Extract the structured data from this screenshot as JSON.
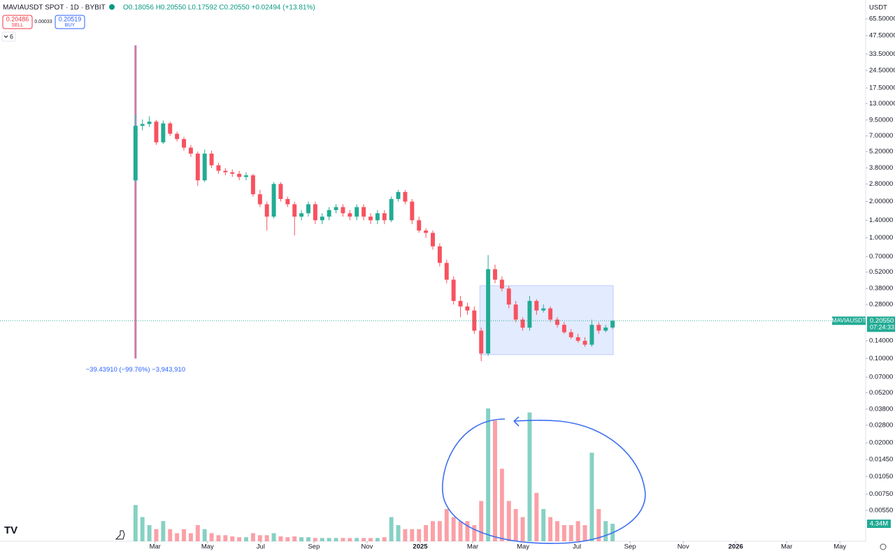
{
  "toolbar": {
    "symbol": "MAVIAUSDT SPOT · 1D · BYBIT",
    "ohlc": "O0.18056 H0.20550 L0.17592 C0.20550 +0.02494 (+13.81%)",
    "sell_price": "0.20486",
    "sell": "SELL",
    "spread": "0.00033",
    "buy_price": "0.20519",
    "buy": "BUY",
    "indicators": "6",
    "currency": "USDT"
  },
  "price_label": {
    "name": "MAVIAUSDT",
    "price": "0.20550",
    "countdown": "07:24:33"
  },
  "chart_data": {
    "type": "candlestick",
    "log_scale": true,
    "grid": false,
    "up_color": "#22ab94",
    "down_color": "#f7525f",
    "open": [
      3.0,
      8.5,
      8.8,
      9.2,
      6.2,
      8.9,
      7.3,
      6.6,
      5.6,
      5.0,
      3.0,
      5.0,
      4.0,
      3.6,
      3.5,
      3.4,
      3.2,
      3.3,
      2.3,
      1.9,
      1.5,
      2.8,
      2.1,
      1.9,
      1.5,
      1.6,
      1.9,
      1.4,
      1.5,
      1.7,
      1.8,
      1.6,
      1.5,
      1.8,
      1.5,
      1.4,
      1.6,
      1.4,
      2.1,
      2.4,
      2.0,
      1.4,
      1.15,
      1.1,
      0.85,
      0.62,
      0.45,
      0.3,
      0.27,
      0.25,
      0.17,
      0.11,
      0.55,
      0.45,
      0.38,
      0.28,
      0.21,
      0.18,
      0.3,
      0.25,
      0.26,
      0.21,
      0.19,
      0.165,
      0.15,
      0.14,
      0.13,
      0.19,
      0.17,
      0.18056
    ],
    "high": [
      10.5,
      9.6,
      10.2,
      9.5,
      9.4,
      9.2,
      7.6,
      6.9,
      5.9,
      5.2,
      5.4,
      5.3,
      4.2,
      3.8,
      3.7,
      3.6,
      3.5,
      3.4,
      2.5,
      2.0,
      2.9,
      2.9,
      2.2,
      2.0,
      1.7,
      2.0,
      2.0,
      1.6,
      1.8,
      1.9,
      1.9,
      1.7,
      1.9,
      1.9,
      1.6,
      1.7,
      1.7,
      2.2,
      2.5,
      2.5,
      2.1,
      1.5,
      1.2,
      1.15,
      0.9,
      0.66,
      0.48,
      0.33,
      0.29,
      0.27,
      0.18,
      0.72,
      0.6,
      0.48,
      0.4,
      0.3,
      0.22,
      0.33,
      0.31,
      0.28,
      0.27,
      0.22,
      0.2,
      0.175,
      0.16,
      0.15,
      0.21,
      0.2,
      0.19,
      0.2055
    ],
    "low": [
      2.9,
      7.8,
      8.3,
      5.9,
      6.0,
      7.0,
      6.3,
      5.3,
      4.7,
      2.7,
      2.9,
      3.8,
      3.4,
      3.3,
      3.2,
      3.0,
      3.0,
      2.2,
      1.8,
      1.15,
      1.45,
      2.0,
      1.8,
      1.05,
      1.4,
      1.5,
      1.3,
      1.3,
      1.4,
      1.6,
      1.5,
      1.4,
      1.4,
      1.4,
      1.3,
      1.3,
      1.3,
      1.35,
      2.0,
      1.9,
      1.3,
      1.1,
      1.0,
      0.8,
      0.58,
      0.42,
      0.28,
      0.22,
      0.23,
      0.16,
      0.095,
      0.105,
      0.42,
      0.36,
      0.26,
      0.2,
      0.17,
      0.17,
      0.23,
      0.24,
      0.2,
      0.18,
      0.16,
      0.145,
      0.135,
      0.125,
      0.125,
      0.16,
      0.165,
      0.17592
    ],
    "close": [
      8.5,
      8.8,
      9.2,
      6.2,
      8.9,
      7.3,
      6.6,
      5.6,
      5.0,
      3.0,
      5.0,
      4.0,
      3.6,
      3.5,
      3.4,
      3.2,
      3.3,
      2.3,
      1.9,
      1.5,
      2.8,
      2.1,
      1.9,
      1.5,
      1.6,
      1.9,
      1.4,
      1.5,
      1.7,
      1.8,
      1.6,
      1.5,
      1.8,
      1.5,
      1.4,
      1.6,
      1.4,
      2.1,
      2.4,
      2.0,
      1.4,
      1.15,
      1.1,
      0.85,
      0.62,
      0.45,
      0.3,
      0.27,
      0.25,
      0.17,
      0.11,
      0.55,
      0.45,
      0.38,
      0.28,
      0.21,
      0.18,
      0.3,
      0.25,
      0.26,
      0.21,
      0.19,
      0.165,
      0.15,
      0.14,
      0.13,
      0.19,
      0.17,
      0.18056,
      0.2055
    ],
    "series": [
      {
        "name": "Volume",
        "axis": "y2",
        "values": [
          9,
          6,
          4,
          3,
          5,
          3,
          2,
          3,
          2,
          4,
          3,
          2,
          1.5,
          1.5,
          1.2,
          1,
          1,
          2,
          1.5,
          1.5,
          2,
          1.2,
          1,
          1.2,
          1,
          1,
          0.8,
          0.8,
          0.8,
          0.8,
          0.8,
          0.8,
          0.8,
          0.8,
          0.8,
          0.8,
          1,
          6,
          4,
          3,
          3,
          3,
          4,
          5,
          5,
          8,
          6,
          5,
          5,
          4,
          10,
          33,
          30,
          18,
          10,
          8,
          6,
          32,
          12,
          8,
          6,
          5,
          4,
          4,
          5,
          4,
          22,
          8,
          5,
          4.34
        ],
        "last_label": "4.34M"
      }
    ],
    "xlim": [
      -19.6,
      105.6
    ],
    "xticks": [
      {
        "value": 2.83,
        "label": "Mar"
      },
      {
        "value": 10.42,
        "label": "May"
      },
      {
        "value": 18.11,
        "label": "Jul"
      },
      {
        "value": 25.8,
        "label": "Sep"
      },
      {
        "value": 33.49,
        "label": "Nov"
      },
      {
        "value": 41.18,
        "label": "2025"
      },
      {
        "value": 48.77,
        "label": "Mar"
      },
      {
        "value": 56.05,
        "label": "May"
      },
      {
        "value": 63.84,
        "label": "Jul"
      },
      {
        "value": 71.53,
        "label": "Sep"
      },
      {
        "value": 79.22,
        "label": "Nov"
      },
      {
        "value": 86.81,
        "label": "2026"
      },
      {
        "value": 94.19,
        "label": "Mar"
      },
      {
        "value": 101.88,
        "label": "May"
      }
    ],
    "ylim": [
      0.00305,
      93.9
    ],
    "y2lim": [
      0,
      134.5
    ],
    "yticks": [
      {
        "value": 65.5,
        "label": "65.50000"
      },
      {
        "value": 47.5,
        "label": "47.50000"
      },
      {
        "value": 33.5,
        "label": "33.50000"
      },
      {
        "value": 24.5,
        "label": "24.50000"
      },
      {
        "value": 17.5,
        "label": "17.50000"
      },
      {
        "value": 13,
        "label": "13.00000"
      },
      {
        "value": 9.5,
        "label": "9.50000"
      },
      {
        "value": 7,
        "label": "7.00000"
      },
      {
        "value": 5.2,
        "label": "5.20000"
      },
      {
        "value": 3.8,
        "label": "3.80000"
      },
      {
        "value": 2.8,
        "label": "2.80000"
      },
      {
        "value": 2,
        "label": "2.00000"
      },
      {
        "value": 1.4,
        "label": "1.40000"
      },
      {
        "value": 1,
        "label": "1.00000"
      },
      {
        "value": 0.7,
        "label": "0.70000"
      },
      {
        "value": 0.52,
        "label": "0.52000"
      },
      {
        "value": 0.38,
        "label": "0.38000"
      },
      {
        "value": 0.28,
        "label": "0.28000"
      },
      {
        "value": 0.14,
        "label": "0.14000"
      },
      {
        "value": 0.1,
        "label": "0.10000"
      },
      {
        "value": 0.07,
        "label": "0.07000"
      },
      {
        "value": 0.052,
        "label": "0.05200"
      },
      {
        "value": 0.038,
        "label": "0.03800"
      },
      {
        "value": 0.028,
        "label": "0.02800"
      },
      {
        "value": 0.02,
        "label": "0.02000"
      },
      {
        "value": 0.0145,
        "label": "0.01450"
      },
      {
        "value": 0.0105,
        "label": "0.01050"
      },
      {
        "value": 0.0075,
        "label": "0.00750"
      },
      {
        "value": 0.0055,
        "label": "0.00550"
      }
    ],
    "range_box": {
      "x": [
        49.8,
        69.1
      ],
      "y": [
        0.1075,
        0.402
      ]
    },
    "measure": {
      "x": 0,
      "from": 39.5391,
      "to": 0.1,
      "label": "−39.43910 (−99.76%) −3,943,910"
    }
  }
}
